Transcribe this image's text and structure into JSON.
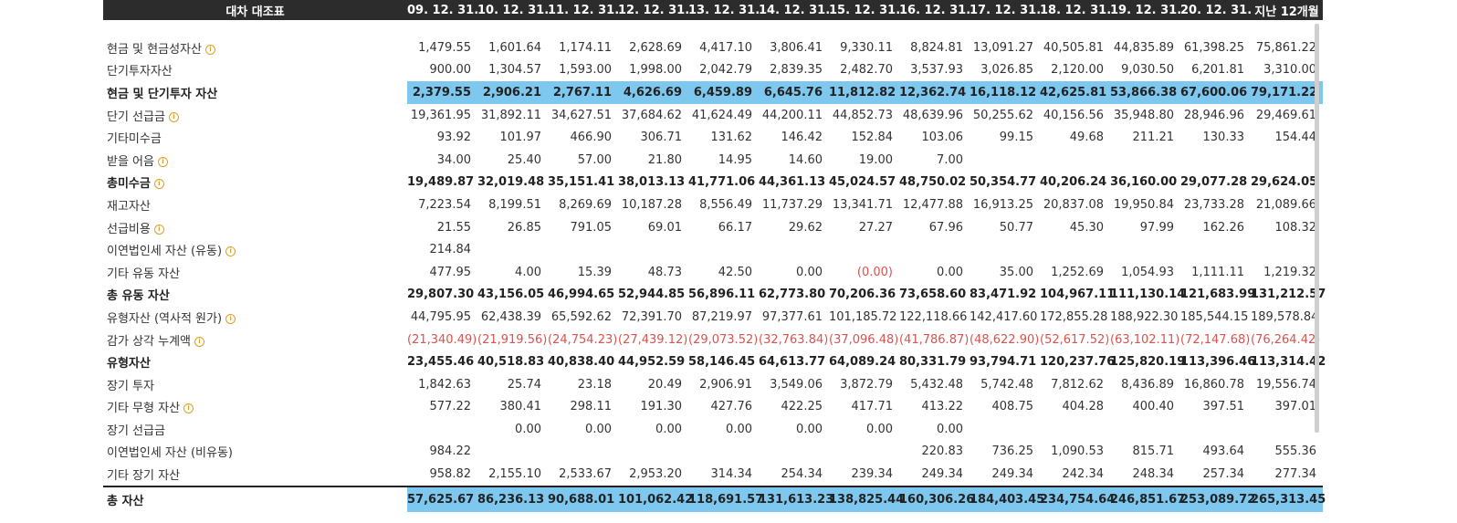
{
  "header": {
    "title": "대차 대조표",
    "periods": [
      "09. 12. 31.",
      "10. 12. 31.",
      "11. 12. 31.",
      "12. 12. 31.",
      "13. 12. 31.",
      "14. 12. 31.",
      "15. 12. 31.",
      "16. 12. 31.",
      "17. 12. 31.",
      "18. 12. 31.",
      "19. 12. 31.",
      "20. 12. 31.",
      "지난 12개월"
    ]
  },
  "rows": [
    {
      "label": "현금 및 현금성자산",
      "info": true,
      "bold": false,
      "hl": false,
      "values": [
        "1,479.55",
        "1,601.64",
        "1,174.11",
        "2,628.69",
        "4,417.10",
        "3,806.41",
        "9,330.11",
        "8,824.81",
        "13,091.27",
        "40,505.81",
        "44,835.89",
        "61,398.25",
        "75,861.22"
      ]
    },
    {
      "label": "단기투자자산",
      "info": false,
      "bold": false,
      "hl": false,
      "values": [
        "900.00",
        "1,304.57",
        "1,593.00",
        "1,998.00",
        "2,042.79",
        "2,839.35",
        "2,482.70",
        "3,537.93",
        "3,026.85",
        "2,120.00",
        "9,030.50",
        "6,201.81",
        "3,310.00"
      ]
    },
    {
      "label": "현금 및 단기투자 자산",
      "info": false,
      "bold": true,
      "hl": true,
      "values": [
        "2,379.55",
        "2,906.21",
        "2,767.11",
        "4,626.69",
        "6,459.89",
        "6,645.76",
        "11,812.82",
        "12,362.74",
        "16,118.12",
        "42,625.81",
        "53,866.38",
        "67,600.06",
        "79,171.22"
      ]
    },
    {
      "label": "단기 선급금",
      "info": true,
      "bold": false,
      "hl": false,
      "values": [
        "19,361.95",
        "31,892.11",
        "34,627.51",
        "37,684.62",
        "41,624.49",
        "44,200.11",
        "44,852.73",
        "48,639.96",
        "50,255.62",
        "40,156.56",
        "35,948.80",
        "28,946.96",
        "29,469.61"
      ]
    },
    {
      "label": "기타미수금",
      "info": false,
      "bold": false,
      "hl": false,
      "values": [
        "93.92",
        "101.97",
        "466.90",
        "306.71",
        "131.62",
        "146.42",
        "152.84",
        "103.06",
        "99.15",
        "49.68",
        "211.21",
        "130.33",
        "154.44"
      ]
    },
    {
      "label": "받을 어음",
      "info": true,
      "bold": false,
      "hl": false,
      "values": [
        "34.00",
        "25.40",
        "57.00",
        "21.80",
        "14.95",
        "14.60",
        "19.00",
        "7.00",
        "",
        "",
        "",
        "",
        ""
      ]
    },
    {
      "label": "총미수금",
      "info": true,
      "bold": true,
      "hl": false,
      "values": [
        "19,489.87",
        "32,019.48",
        "35,151.41",
        "38,013.13",
        "41,771.06",
        "44,361.13",
        "45,024.57",
        "48,750.02",
        "50,354.77",
        "40,206.24",
        "36,160.00",
        "29,077.28",
        "29,624.05"
      ]
    },
    {
      "label": "재고자산",
      "info": false,
      "bold": false,
      "hl": false,
      "values": [
        "7,223.54",
        "8,199.51",
        "8,269.69",
        "10,187.28",
        "8,556.49",
        "11,737.29",
        "13,341.71",
        "12,477.88",
        "16,913.25",
        "20,837.08",
        "19,950.84",
        "23,733.28",
        "21,089.66"
      ]
    },
    {
      "label": "선급비용",
      "info": true,
      "bold": false,
      "hl": false,
      "values": [
        "21.55",
        "26.85",
        "791.05",
        "69.01",
        "66.17",
        "29.62",
        "27.27",
        "67.96",
        "50.77",
        "45.30",
        "97.99",
        "162.26",
        "108.32"
      ]
    },
    {
      "label": "이연법인세 자산 (유동)",
      "info": true,
      "bold": false,
      "hl": false,
      "values": [
        "214.84",
        "",
        "",
        "",
        "",
        "",
        "",
        "",
        "",
        "",
        "",
        "",
        ""
      ]
    },
    {
      "label": "기타 유동 자산",
      "info": false,
      "bold": false,
      "hl": false,
      "values": [
        "477.95",
        "4.00",
        "15.39",
        "48.73",
        "42.50",
        "0.00",
        "(0.00)",
        "0.00",
        "35.00",
        "1,252.69",
        "1,054.93",
        "1,111.11",
        "1,219.32"
      ]
    },
    {
      "label": "총 유동 자산",
      "info": false,
      "bold": true,
      "hl": false,
      "values": [
        "29,807.30",
        "43,156.05",
        "46,994.65",
        "52,944.85",
        "56,896.11",
        "62,773.80",
        "70,206.36",
        "73,658.60",
        "83,471.92",
        "104,967.11",
        "111,130.14",
        "121,683.99",
        "131,212.57"
      ]
    },
    {
      "label": "유형자산 (역사적 원가)",
      "info": true,
      "bold": false,
      "hl": false,
      "values": [
        "44,795.95",
        "62,438.39",
        "65,592.62",
        "72,391.70",
        "87,219.97",
        "97,377.61",
        "101,185.72",
        "122,118.66",
        "142,417.60",
        "172,855.28",
        "188,922.30",
        "185,544.15",
        "189,578.84"
      ]
    },
    {
      "label": "감가 상각 누계액",
      "info": true,
      "bold": false,
      "hl": false,
      "values": [
        "(21,340.49)",
        "(21,919.56)",
        "(24,754.23)",
        "(27,439.12)",
        "(29,073.52)",
        "(32,763.84)",
        "(37,096.48)",
        "(41,786.87)",
        "(48,622.90)",
        "(52,617.52)",
        "(63,102.11)",
        "(72,147.68)",
        "(76,264.42)"
      ]
    },
    {
      "label": "유형자산",
      "info": false,
      "bold": true,
      "hl": false,
      "values": [
        "23,455.46",
        "40,518.83",
        "40,838.40",
        "44,952.59",
        "58,146.45",
        "64,613.77",
        "64,089.24",
        "80,331.79",
        "93,794.71",
        "120,237.76",
        "125,820.19",
        "113,396.46",
        "113,314.42"
      ]
    },
    {
      "label": "장기 투자",
      "info": false,
      "bold": false,
      "hl": false,
      "values": [
        "1,842.63",
        "25.74",
        "23.18",
        "20.49",
        "2,906.91",
        "3,549.06",
        "3,872.79",
        "5,432.48",
        "5,742.48",
        "7,812.62",
        "8,436.89",
        "16,860.78",
        "19,556.74"
      ]
    },
    {
      "label": "기타 무형 자산",
      "info": true,
      "bold": false,
      "hl": false,
      "values": [
        "577.22",
        "380.41",
        "298.11",
        "191.30",
        "427.76",
        "422.25",
        "417.71",
        "413.22",
        "408.75",
        "404.28",
        "400.40",
        "397.51",
        "397.01"
      ]
    },
    {
      "label": "장기 선급금",
      "info": false,
      "bold": false,
      "hl": false,
      "values": [
        "",
        "0.00",
        "0.00",
        "0.00",
        "0.00",
        "0.00",
        "0.00",
        "0.00",
        "",
        "",
        "",
        "",
        ""
      ]
    },
    {
      "label": "이연법인세 자산 (비유동)",
      "info": false,
      "bold": false,
      "hl": false,
      "values": [
        "984.22",
        "",
        "",
        "",
        "",
        "",
        "",
        "220.83",
        "736.25",
        "1,090.53",
        "815.71",
        "493.64",
        "555.36"
      ]
    },
    {
      "label": "기타 장기 자산",
      "info": false,
      "bold": false,
      "hl": false,
      "values": [
        "958.82",
        "2,155.10",
        "2,533.67",
        "2,953.20",
        "314.34",
        "254.34",
        "239.34",
        "249.34",
        "249.34",
        "242.34",
        "248.34",
        "257.34",
        "277.34"
      ]
    },
    {
      "label": "총 자산",
      "info": false,
      "bold": true,
      "hl": true,
      "total": true,
      "values": [
        "57,625.67",
        "86,236.13",
        "90,688.01",
        "101,062.42",
        "118,691.57",
        "131,613.23",
        "138,825.44",
        "160,306.26",
        "184,403.45",
        "234,754.64",
        "246,851.67",
        "253,089.72",
        "265,313.45"
      ]
    }
  ],
  "colors": {
    "header_bg": "#2c2c2c",
    "highlight": "#7ec8f0",
    "negative": "#d9534f",
    "info_icon": "#e0a020"
  },
  "icons": {
    "info": "info-icon"
  }
}
